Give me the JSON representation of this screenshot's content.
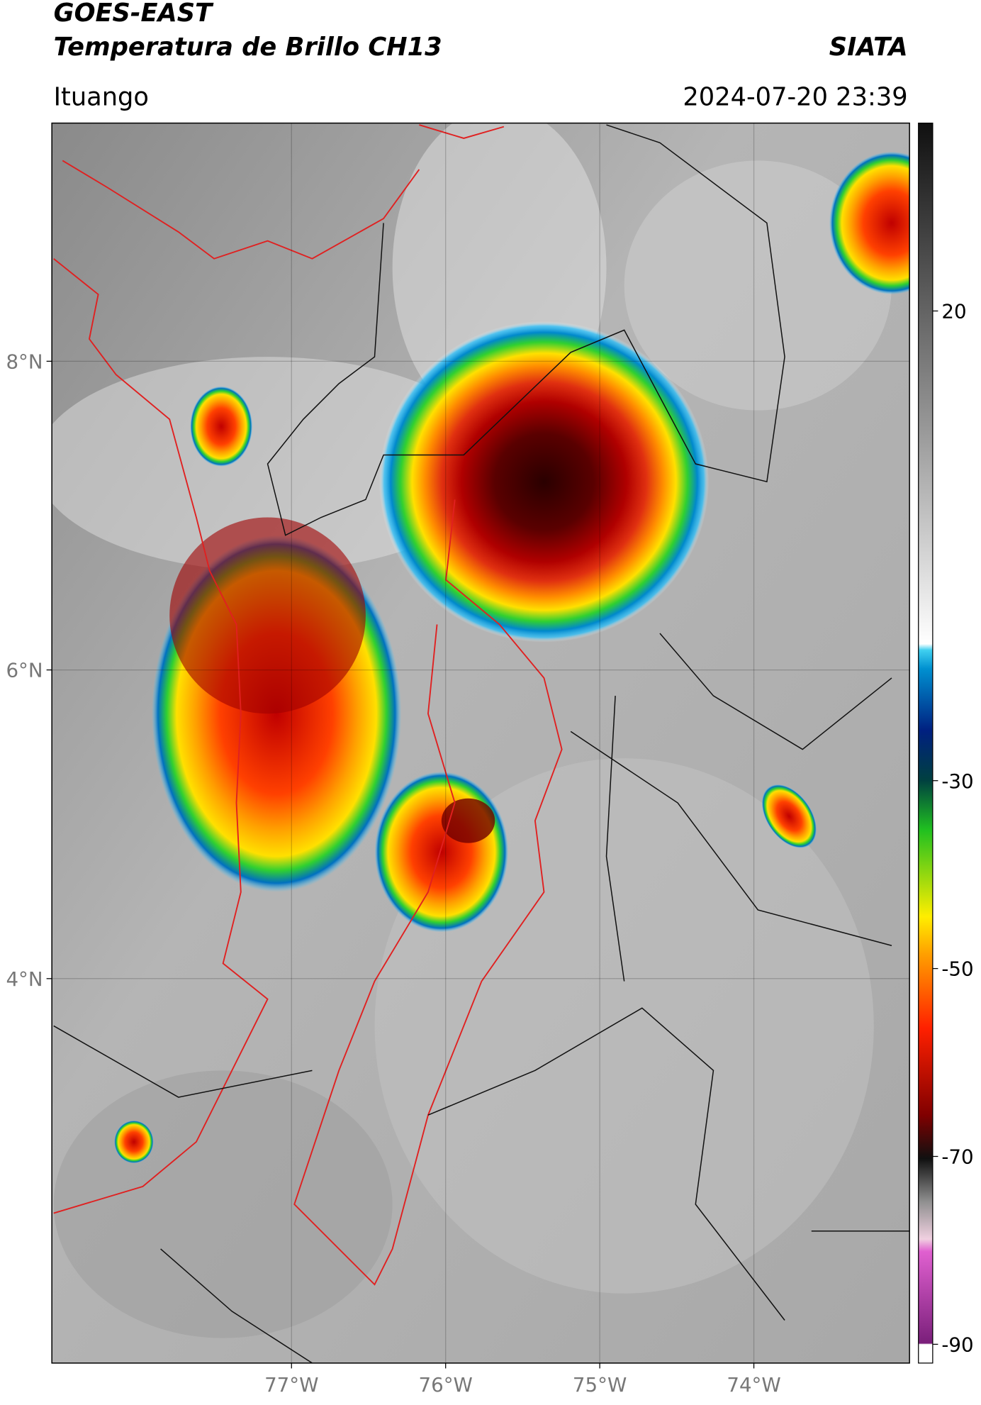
{
  "header": {
    "title": "GOES-EAST",
    "subtitle": "Temperatura de Brillo CH13",
    "source": "SIATA",
    "location": "Ituango",
    "datetime": "2024-07-20 23:39"
  },
  "map": {
    "xlim": [
      -78.555,
      -72.99
    ],
    "ylim": [
      1.509,
      9.543
    ],
    "xticks": [
      {
        "value": -77,
        "label": "77°W"
      },
      {
        "value": -76,
        "label": "76°W"
      },
      {
        "value": -75,
        "label": "75°W"
      },
      {
        "value": -74,
        "label": "74°W"
      }
    ],
    "yticks": [
      {
        "value": 8,
        "label": "8°N"
      },
      {
        "value": 6,
        "label": "6°N"
      },
      {
        "value": 4,
        "label": "4°N"
      }
    ],
    "grid": true
  },
  "colorbar": {
    "lim": [
      -92,
      40
    ],
    "ticks": [
      20,
      -30,
      -50,
      -70,
      -90
    ]
  }
}
